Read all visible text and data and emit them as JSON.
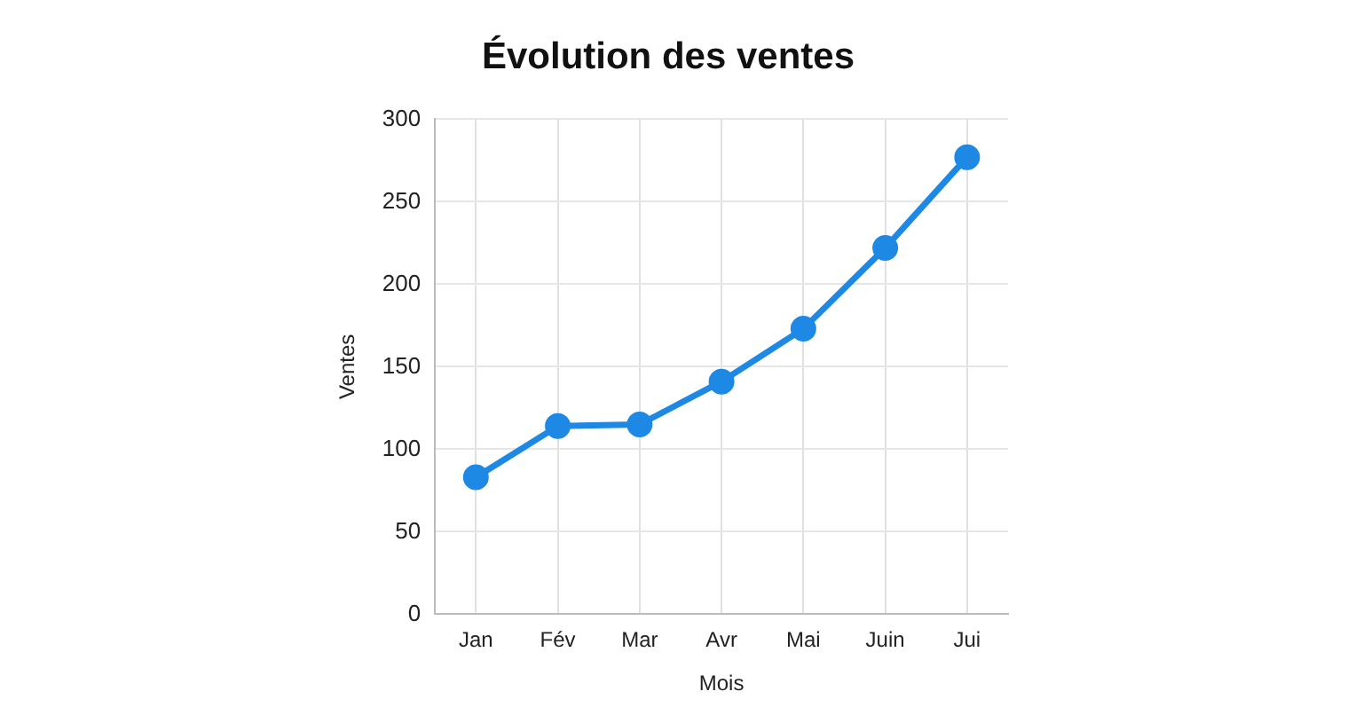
{
  "chart_data": {
    "type": "line",
    "title": "Évolution des ventes",
    "xlabel": "Mois",
    "ylabel": "Ventes",
    "categories": [
      "Jan",
      "Fév",
      "Mar",
      "Avr",
      "Mai",
      "Juin",
      "Jui"
    ],
    "series": [
      {
        "color": "#1e88e5",
        "values": [
          83,
          114,
          115,
          141,
          173,
          222,
          277
        ]
      }
    ],
    "ylim": [
      0,
      300
    ],
    "yticks": [
      0,
      50,
      100,
      150,
      200,
      250,
      300
    ],
    "grid": true,
    "legend": false,
    "marker": "circle",
    "line_style": "solid"
  }
}
